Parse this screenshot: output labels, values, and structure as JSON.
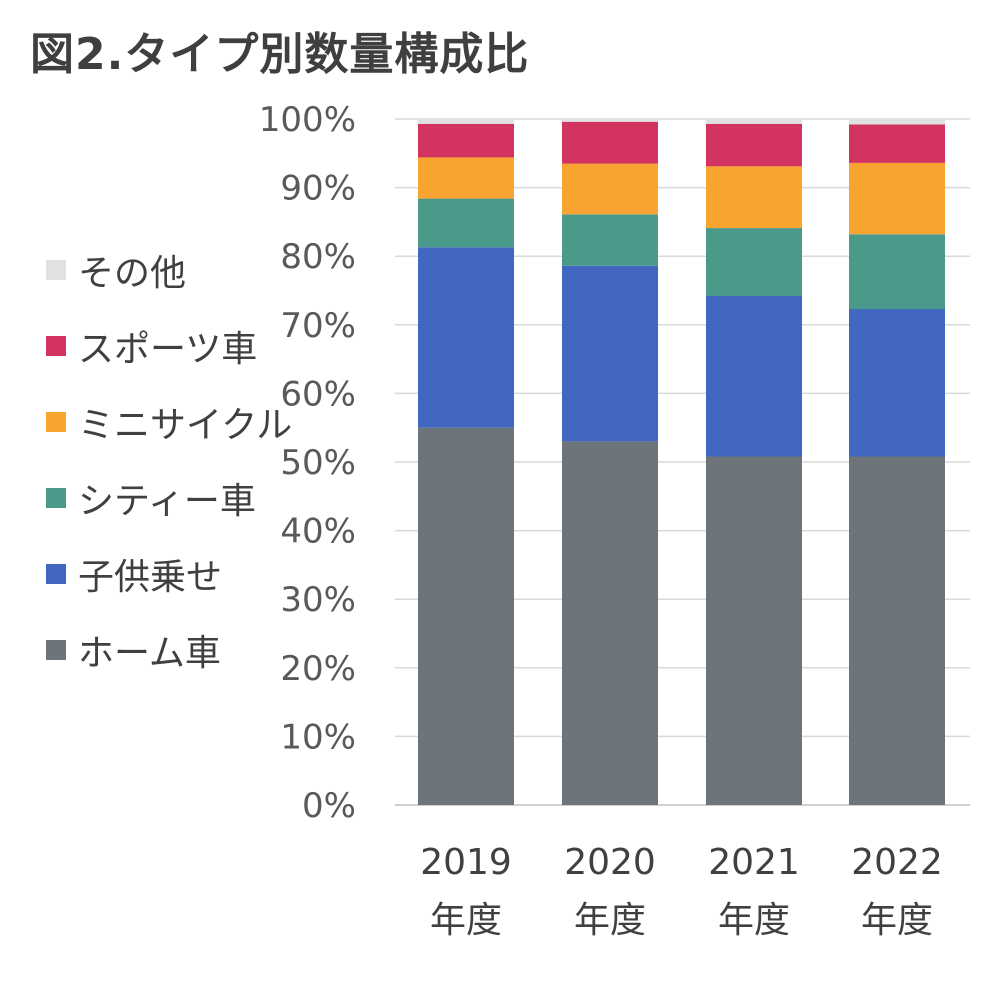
{
  "title": "図2.タイプ別数量構成比",
  "chart_data": {
    "type": "bar",
    "stacked": true,
    "title": "図2.タイプ別数量構成比",
    "categories": [
      [
        "2019",
        "年度"
      ],
      [
        "2020",
        "年度"
      ],
      [
        "2021",
        "年度"
      ],
      [
        "2022",
        "年度"
      ]
    ],
    "y_ticks": [
      "0%",
      "10%",
      "20%",
      "30%",
      "40%",
      "50%",
      "60%",
      "70%",
      "80%",
      "90%",
      "100%"
    ],
    "ylim": [
      0,
      100
    ],
    "grid": true,
    "legend_position": "left",
    "series": [
      {
        "name": "ホーム車",
        "color": "#6d757a",
        "values": [
          55.0,
          53.0,
          50.8,
          50.8
        ]
      },
      {
        "name": "子供乗せ",
        "color": "#4267c2",
        "values": [
          26.3,
          25.6,
          23.4,
          21.5
        ]
      },
      {
        "name": "シティー車",
        "color": "#4a9a8c",
        "values": [
          7.1,
          7.5,
          9.9,
          10.9
        ]
      },
      {
        "name": "ミニサイクル",
        "color": "#f9a331",
        "values": [
          6.0,
          7.4,
          9.0,
          10.4
        ]
      },
      {
        "name": "スポーツ車",
        "color": "#d2345f",
        "values": [
          4.9,
          6.1,
          6.2,
          5.6
        ]
      },
      {
        "name": "その他",
        "color": "#e0e1e3",
        "values": [
          0.7,
          0.4,
          0.7,
          0.8
        ]
      }
    ]
  },
  "legend": {
    "items": [
      {
        "label": "その他",
        "color": "#e0e1e3"
      },
      {
        "label": "スポーツ車",
        "color": "#d2345f"
      },
      {
        "label": "ミニサイクル",
        "color": "#f9a331"
      },
      {
        "label": "シティー車",
        "color": "#4a9a8c"
      },
      {
        "label": "子供乗せ",
        "color": "#4267c2"
      },
      {
        "label": "ホーム車",
        "color": "#6d757a"
      }
    ]
  },
  "colors": {
    "grid": "#d9d9d9",
    "axis": "#d0d0d0",
    "title_text": "#3f3f3f",
    "label_text": "#404040"
  }
}
